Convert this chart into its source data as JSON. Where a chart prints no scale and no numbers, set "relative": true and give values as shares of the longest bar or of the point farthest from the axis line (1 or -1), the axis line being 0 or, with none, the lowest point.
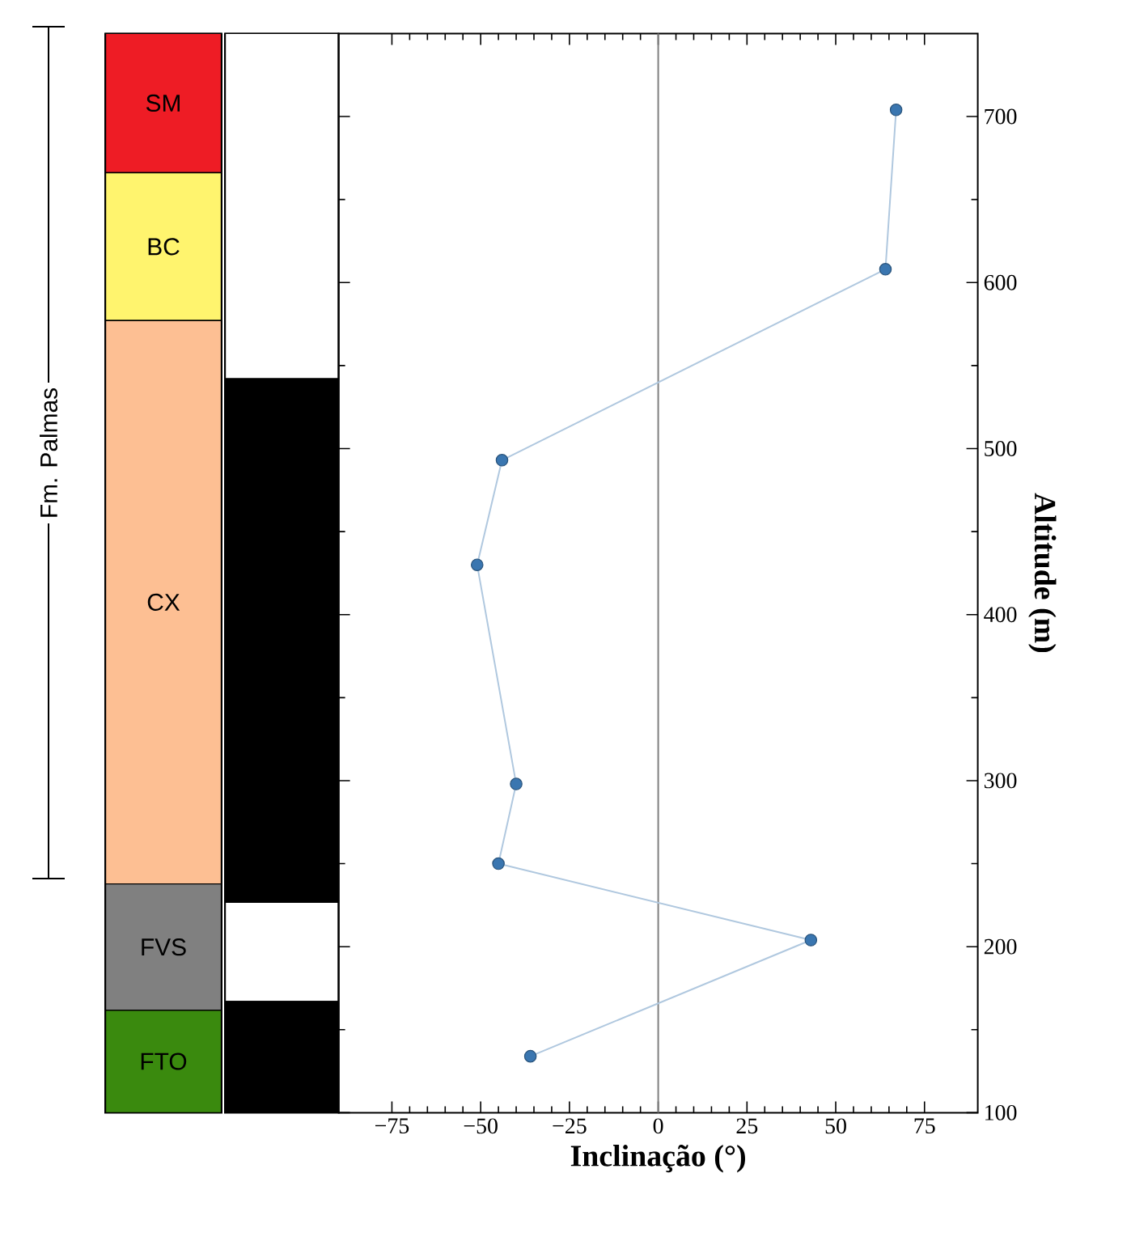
{
  "chart_data": [
    {
      "type": "bar",
      "stacked": true,
      "relative": true,
      "categories": [
        null
      ],
      "annotations": [
        "Fm. Palmas"
      ],
      "series": [
        {
          "name": "FTO",
          "color": "#3a8a0e",
          "values": [
            0.095
          ]
        },
        {
          "name": "FVS",
          "color": "#808080",
          "values": [
            0.117
          ]
        },
        {
          "name": "CX",
          "color": "#fdbf93",
          "values": [
            0.522
          ]
        },
        {
          "name": "BC",
          "color": "#fff46e",
          "values": [
            0.137
          ]
        },
        {
          "name": "SM",
          "color": "#ee1c25",
          "values": [
            0.129
          ]
        }
      ]
    },
    {
      "type": "bar",
      "stacked": true,
      "relative": true,
      "categories": [
        null
      ],
      "series": [
        {
          "color": "#000000",
          "values": [
            0.103
          ]
        },
        {
          "color": "#ffffff",
          "values": [
            0.092
          ]
        },
        {
          "color": "#000000",
          "values": [
            0.485
          ]
        },
        {
          "color": "#ffffff",
          "values": [
            0.32
          ]
        }
      ]
    },
    {
      "type": "line",
      "xlabel": "Inclinação (°)",
      "ylabel": "Altitude (m)",
      "x": [
        67,
        64,
        -44,
        -51,
        -40,
        -45,
        43,
        -36
      ],
      "series": [
        {
          "color": "#3a76b0",
          "marker": "circle",
          "values": [
            704,
            608,
            493,
            430,
            298,
            250,
            204,
            134
          ]
        }
      ],
      "xlim": [
        -90,
        90
      ],
      "ylim": [
        100,
        750
      ],
      "xticks": [
        {
          "value": -75,
          "label": "−75"
        },
        {
          "value": -50,
          "label": "−50"
        },
        {
          "value": -25,
          "label": "−25"
        },
        0,
        25,
        50,
        75
      ],
      "yticks": [
        100,
        200,
        300,
        400,
        500,
        600,
        700
      ],
      "ref_lines": [
        {
          "axis": "x",
          "value": 0,
          "color": "#808080"
        }
      ]
    }
  ]
}
